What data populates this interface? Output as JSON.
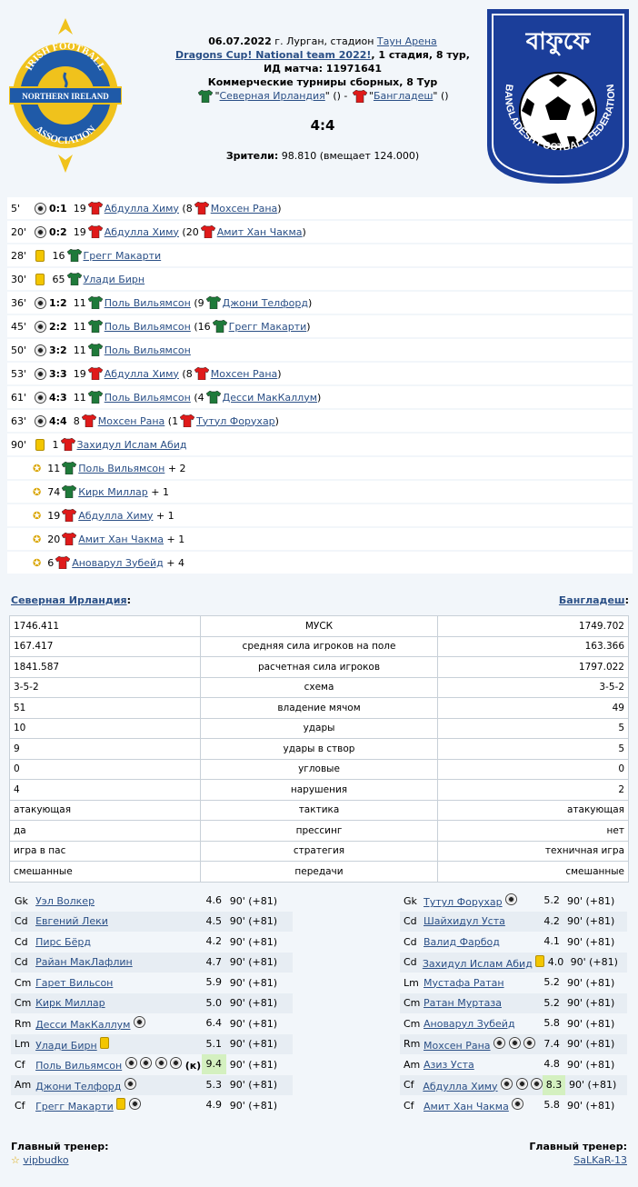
{
  "match": {
    "date": "06.07.2022",
    "city": "г. Лурган, стадион ",
    "stadium": "Таун Арена",
    "tournament": "Dragons Cup! National team 2022!",
    "stage": ", 1 стадия, 8 тур,",
    "match_id": "ИД матча: 11971641",
    "competition": "Коммерческие турниры сборных, 8 Тур",
    "home": "Северная Ирландия",
    "away": "Бангладеш",
    "score": "4:4",
    "viewers_label": "Зрители:",
    "viewers_value": "98.810 (вмещает 124.000)"
  },
  "logos": {
    "left": {
      "top_text": "IRISH FOOTBALL",
      "band_text": "NORTHERN IRELAND",
      "bottom_text": "ASSOCIATION"
    },
    "right": {
      "arc_text": "BANGLADESH FOOTBALL FEDERATION",
      "letters": "বাফুফে"
    }
  },
  "events": [
    {
      "min": "5'",
      "type": "goal",
      "score": "0:1",
      "num": "19",
      "team": "away",
      "player": "Абдулла Химу",
      "assist_num": "8",
      "assist": "Мохсен Рана"
    },
    {
      "min": "20'",
      "type": "goal",
      "score": "0:2",
      "num": "19",
      "team": "away",
      "player": "Абдулла Химу",
      "assist_num": "20",
      "assist": "Амит Хан Чакма"
    },
    {
      "min": "28'",
      "type": "card",
      "num": "16",
      "team": "home",
      "player": "Грегг Макарти"
    },
    {
      "min": "30'",
      "type": "card",
      "num": "65",
      "team": "home",
      "player": "Улади Бирн"
    },
    {
      "min": "36'",
      "type": "goal",
      "score": "1:2",
      "num": "11",
      "team": "home",
      "player": "Поль Вильямсон",
      "assist_num": "9",
      "assist": "Джони Телфорд"
    },
    {
      "min": "45'",
      "type": "goal",
      "score": "2:2",
      "num": "11",
      "team": "home",
      "player": "Поль Вильямсон",
      "assist_num": "16",
      "assist": "Грегг Макарти"
    },
    {
      "min": "50'",
      "type": "goal",
      "score": "3:2",
      "num": "11",
      "team": "home",
      "player": "Поль Вильямсон"
    },
    {
      "min": "53'",
      "type": "goal",
      "score": "3:3",
      "num": "19",
      "team": "away",
      "player": "Абдулла Химу",
      "assist_num": "8",
      "assist": "Мохсен Рана"
    },
    {
      "min": "61'",
      "type": "goal",
      "score": "4:3",
      "num": "11",
      "team": "home",
      "player": "Поль Вильямсон",
      "assist_num": "4",
      "assist": "Десси МакКаллум"
    },
    {
      "min": "63'",
      "type": "goal",
      "score": "4:4",
      "num": "8",
      "team": "away",
      "player": "Мохсен Рана",
      "assist_num": "1",
      "assist": "Тутул Форухар"
    },
    {
      "min": "90'",
      "type": "card",
      "num": "1",
      "team": "away",
      "player": "Захидул Ислам Абид"
    }
  ],
  "stars": [
    {
      "num": "11",
      "team": "home",
      "player": "Поль Вильямсон",
      "extra": "+ 2"
    },
    {
      "num": "74",
      "team": "home",
      "player": "Кирк Миллар",
      "extra": "+ 1"
    },
    {
      "num": "19",
      "team": "away",
      "player": "Абдулла Химу",
      "extra": "+ 1"
    },
    {
      "num": "20",
      "team": "away",
      "player": "Амит Хан Чакма",
      "extra": "+ 1"
    },
    {
      "num": "6",
      "team": "away",
      "player": "Ановарул Зубейд",
      "extra": "+ 4"
    }
  ],
  "teams": {
    "home_label": "Северная Ирландия",
    "away_label": "Бангладеш",
    "colon": ":"
  },
  "stats": [
    [
      "1746.411",
      "МУСК",
      "1749.702"
    ],
    [
      "167.417",
      "средняя сила игроков на поле",
      "163.366"
    ],
    [
      "1841.587",
      "расчетная сила игроков",
      "1797.022"
    ],
    [
      "3-5-2",
      "схема",
      "3-5-2"
    ],
    [
      "51",
      "владение мячом",
      "49"
    ],
    [
      "10",
      "удары",
      "5"
    ],
    [
      "9",
      "удары в створ",
      "5"
    ],
    [
      "0",
      "угловые",
      "0"
    ],
    [
      "4",
      "нарушения",
      "2"
    ],
    [
      "атакующая",
      "тактика",
      "атакующая"
    ],
    [
      "да",
      "прессинг",
      "нет"
    ],
    [
      "игра в пас",
      "стратегия",
      "техничная игра"
    ],
    [
      "смешанные",
      "передачи",
      "смешанные"
    ]
  ],
  "home_lineup": [
    {
      "pos": "Gk",
      "name": "Уэл Волкер",
      "goals": 0,
      "card": false,
      "rating": "4.6",
      "mins": "90' (+81)"
    },
    {
      "pos": "Cd",
      "name": "Евгений Леки",
      "goals": 0,
      "card": false,
      "rating": "4.5",
      "mins": "90' (+81)"
    },
    {
      "pos": "Cd",
      "name": "Пирс Бёрд",
      "goals": 0,
      "card": false,
      "rating": "4.2",
      "mins": "90' (+81)"
    },
    {
      "pos": "Cd",
      "name": "Райан МакЛафлин",
      "goals": 0,
      "card": false,
      "rating": "4.7",
      "mins": "90' (+81)"
    },
    {
      "pos": "Cm",
      "name": "Гарет Вильсон",
      "goals": 0,
      "card": false,
      "rating": "5.9",
      "mins": "90' (+81)"
    },
    {
      "pos": "Cm",
      "name": "Кирк Миллар",
      "goals": 0,
      "card": false,
      "rating": "5.0",
      "mins": "90' (+81)"
    },
    {
      "pos": "Rm",
      "name": "Десси МакКаллум",
      "goals": 1,
      "card": false,
      "rating": "6.4",
      "mins": "90' (+81)"
    },
    {
      "pos": "Lm",
      "name": "Улади Бирн",
      "goals": 0,
      "card": true,
      "rating": "5.1",
      "mins": "90' (+81)"
    },
    {
      "pos": "Cf",
      "name": "Поль Вильямсон",
      "goals": 4,
      "card": false,
      "captain": "(к)",
      "rating": "9.4",
      "best": true,
      "mins": "90' (+81)"
    },
    {
      "pos": "Am",
      "name": "Джони Телфорд",
      "goals": 1,
      "card": false,
      "rating": "5.3",
      "mins": "90' (+81)"
    },
    {
      "pos": "Cf",
      "name": "Грегг Макарти",
      "goals": 1,
      "card": true,
      "rating": "4.9",
      "mins": "90' (+81)"
    }
  ],
  "away_lineup": [
    {
      "pos": "Gk",
      "name": "Тутул Форухар",
      "goals": 1,
      "card": false,
      "rating": "5.2",
      "mins": "90' (+81)"
    },
    {
      "pos": "Cd",
      "name": "Шайхидул Уста",
      "goals": 0,
      "card": false,
      "rating": "4.2",
      "mins": "90' (+81)"
    },
    {
      "pos": "Cd",
      "name": "Валид Фарбод",
      "goals": 0,
      "card": false,
      "rating": "4.1",
      "mins": "90' (+81)"
    },
    {
      "pos": "Cd",
      "name": "Захидул Ислам Абид",
      "goals": 0,
      "card": true,
      "rating": "4.0",
      "mins": "90' (+81)"
    },
    {
      "pos": "Lm",
      "name": "Мустафа Ратан",
      "goals": 0,
      "card": false,
      "rating": "5.2",
      "mins": "90' (+81)"
    },
    {
      "pos": "Cm",
      "name": "Ратан Муртаза",
      "goals": 0,
      "card": false,
      "rating": "5.2",
      "mins": "90' (+81)"
    },
    {
      "pos": "Cm",
      "name": "Ановарул Зубейд",
      "goals": 0,
      "card": false,
      "rating": "5.8",
      "mins": "90' (+81)"
    },
    {
      "pos": "Rm",
      "name": "Мохсен Рана",
      "goals": 3,
      "card": false,
      "rating": "7.4",
      "mins": "90' (+81)"
    },
    {
      "pos": "Am",
      "name": "Азиз Уста",
      "goals": 0,
      "card": false,
      "rating": "4.8",
      "mins": "90' (+81)"
    },
    {
      "pos": "Cf",
      "name": "Абдулла Химу",
      "goals": 3,
      "card": false,
      "rating": "8.3",
      "best": true,
      "mins": "90' (+81)"
    },
    {
      "pos": "Cf",
      "name": "Амит Хан Чакма",
      "goals": 1,
      "card": false,
      "rating": "5.8",
      "mins": "90' (+81)"
    }
  ],
  "coaches": {
    "label": "Главный тренер:",
    "home": "vipbudko",
    "away": "SaLKaR-13"
  },
  "colors": {
    "home_shirt": "#1f7a3a",
    "away_shirt": "#e01a1a",
    "link": "#2a4f86",
    "best_rating": "#d4f0c0"
  }
}
